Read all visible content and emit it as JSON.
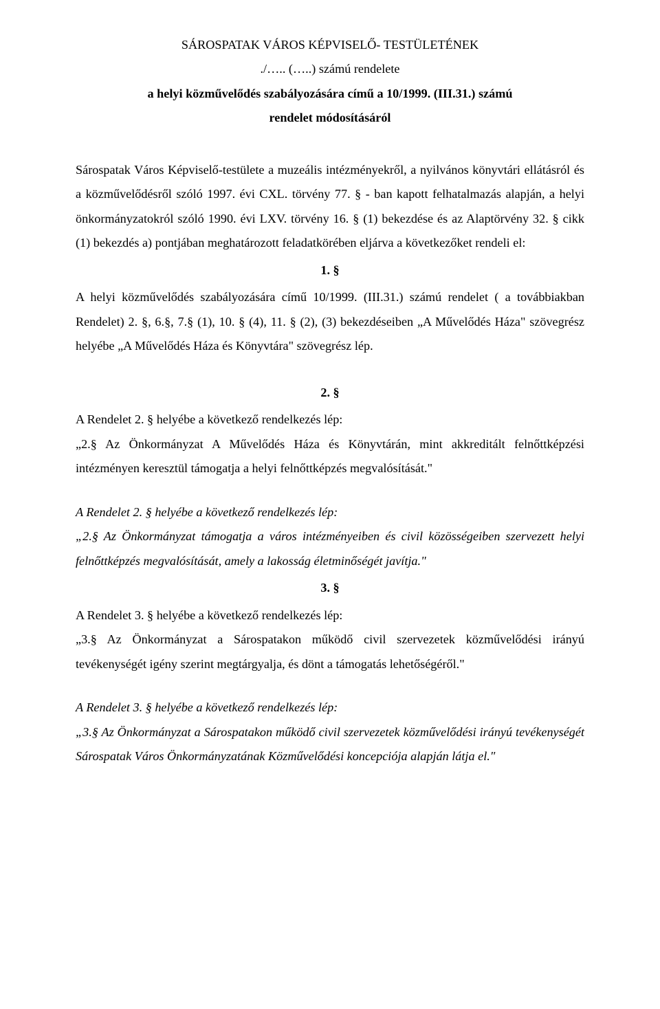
{
  "header": {
    "line1": "SÁROSPATAK VÁROS KÉPVISELŐ- TESTÜLETÉNEK",
    "line2": "./….. (…..) számú rendelete",
    "line3": "a helyi közművelődés szabályozására című  a 10/1999. (III.31.) számú",
    "line4": "rendelet módosításáról"
  },
  "intro": {
    "p1": "Sárospatak Város Képviselő-testülete a muzeális intézményekről, a nyilvános könyvtári ellátásról és a közművelődésről szóló 1997. évi CXL. törvény 77. § - ban kapott felhatalmazás alapján, a helyi önkormányzatokról szóló 1990. évi LXV. törvény 16. § (1) bekezdése és az Alaptörvény 32. § cikk (1) bekezdés a) pontjában meghatározott feladatkörében eljárva a következőket rendeli el:"
  },
  "s1": {
    "num": "1. §",
    "p1": "A helyi közművelődés szabályozására című 10/1999. (III.31.) számú rendelet ( a továbbiakban Rendelet)  2. §, 6.§, 7.§ (1), 10. § (4), 11. § (2), (3) bekezdéseiben „A Művelődés Háza\" szövegrész helyébe „A Művelődés Háza és Könyvtára\" szövegrész lép."
  },
  "s2": {
    "num": "2. §",
    "p1": "A Rendelet 2. § helyébe a következő rendelkezés lép:",
    "p2": "  „2.§ Az Önkormányzat A Művelődés Háza és Könyvtárán, mint akkreditált felnőttképzési intézményen keresztül támogatja a helyi felnőttképzés megvalósítását.\"",
    "p3": "A Rendelet 2. § helyébe a következő rendelkezés lép:",
    "p4": "„2.§ Az Önkormányzat támogatja a város intézményeiben és civil közösségeiben szervezett helyi felnőttképzés megvalósítását, amely a lakosság életminőségét javítja.\""
  },
  "s3": {
    "num": "3. §",
    "p1": "A Rendelet 3. § helyébe a következő rendelkezés lép:",
    "p2": "  „3.§ Az Önkormányzat a Sárospatakon működő civil szervezetek közművelődési irányú tevékenységét igény szerint megtárgyalja, és dönt a támogatás lehetőségéről.\"",
    "p3": "A Rendelet 3. § helyébe a következő rendelkezés lép:",
    "p4": "„3.§ Az Önkormányzat a Sárospatakon működő civil szervezetek közművelődési irányú tevékenységét Sárospatak Város Önkormányzatának Közművelődési koncepciója alapján látja el.\""
  }
}
